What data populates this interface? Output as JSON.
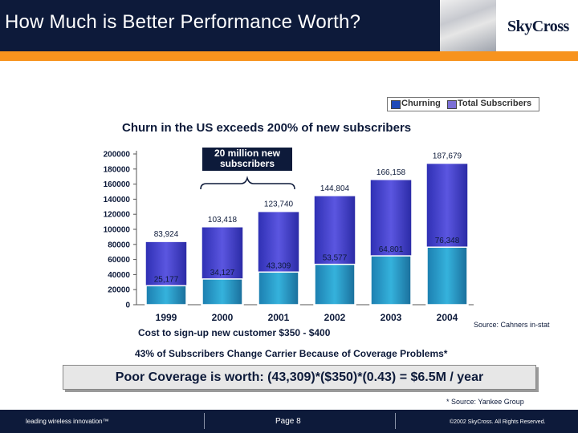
{
  "header": {
    "title": "How Much is Better Performance Worth?",
    "logo_text": "SkyCross"
  },
  "footer": {
    "tagline": "leading wireless innovation™",
    "page": "Page 8",
    "copyright": "©2002 SkyCross.  All Rights Reserved."
  },
  "colors": {
    "navy": "#0d1a3a",
    "orange": "#f7931e",
    "churning": "#1f49b8",
    "total": "#7b6fd6"
  },
  "notes": {
    "callout": [
      "20 million new",
      "subscribers"
    ],
    "cost": "Cost to sign-up new customer $350 - $400",
    "source": "Source: Cahners in-stat",
    "churn": "43% of Subscribers Change Carrier Because of Coverage Problems*",
    "formula": "Poor Coverage is worth: (43,309)*($350)*(0.43) = $6.5M / year",
    "yankee": "* Source: Yankee Group"
  },
  "chart_data": {
    "type": "bar",
    "title": "Churn in the US exceeds 200% of new subscribers",
    "categories": [
      "1999",
      "2000",
      "2001",
      "2002",
      "2003",
      "2004"
    ],
    "series": [
      {
        "name": "Churning",
        "values": [
          25177,
          34127,
          43309,
          53577,
          64801,
          76348
        ],
        "labels": [
          "25,177",
          "34,127",
          "43,309",
          "53,577",
          "64,801",
          "76,348"
        ]
      },
      {
        "name": "Total Subscribers",
        "values": [
          83924,
          103418,
          123740,
          144804,
          166158,
          187679
        ],
        "labels": [
          "83,924",
          "103,418",
          "123,740",
          "144,804",
          "166,158",
          "187,679"
        ]
      }
    ],
    "ylim": [
      0,
      200000
    ],
    "yticks": [
      "0",
      "20000",
      "40000",
      "60000",
      "80000",
      "100000",
      "120000",
      "140000",
      "160000",
      "180000",
      "200000"
    ],
    "legend": "top-right"
  }
}
